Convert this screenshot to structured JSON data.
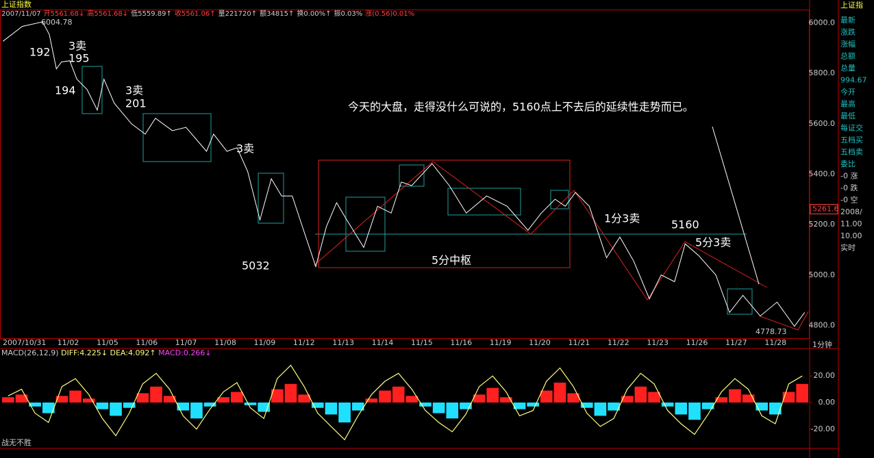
{
  "chart_data": {
    "type": "line",
    "title": "上证指数",
    "info": [
      {
        "text": "2007/11/07",
        "color": "#ccc"
      },
      {
        "text": "开5561.68↓",
        "color": "#ff4040"
      },
      {
        "text": "高5561.68↓",
        "color": "#ff4040"
      },
      {
        "text": "低5559.89↑",
        "color": "#ccc"
      },
      {
        "text": "收5561.06↑",
        "color": "#ff4040"
      },
      {
        "text": "量221720↑",
        "color": "#ccc"
      },
      {
        "text": "额34815↑",
        "color": "#ccc"
      },
      {
        "text": "换0.00%↑",
        "color": "#ccc"
      },
      {
        "text": "振0.03%",
        "color": "#ccc"
      },
      {
        "text": "涨(0.56)0.01%",
        "color": "#ff4040"
      }
    ],
    "categories": [
      "2007/10/31",
      "11/02",
      "11/05",
      "11/06",
      "11/07",
      "11/08",
      "11/09",
      "11/12",
      "11/13",
      "11/14",
      "11/15",
      "11/16",
      "11/19",
      "11/20",
      "11/21",
      "11/22",
      "11/23",
      "11/26",
      "11/27",
      "11/28"
    ],
    "x_unit_label": "1分钟",
    "xlim": [
      -0.7,
      19.85
    ],
    "ylim": [
      4750,
      6050
    ],
    "yticks": [
      {
        "value": 4800,
        "label": "4800.0"
      },
      {
        "value": 5000,
        "label": "5000.0"
      },
      {
        "value": 5200,
        "label": "5200.0"
      },
      {
        "value": 5400,
        "label": "5400.0"
      },
      {
        "value": 5600,
        "label": "5600.0"
      },
      {
        "value": 5800,
        "label": "5800.0"
      },
      {
        "value": 6000,
        "label": "6000.0"
      }
    ],
    "series": [
      {
        "name": "上证指数",
        "color": "#ffffff",
        "x": [
          -0.66,
          -0.17,
          0.35,
          0.52,
          0.7,
          0.83,
          1.04,
          1.22,
          1.48,
          1.74,
          1.91,
          2.17,
          2.61,
          2.96,
          3.22,
          3.65,
          4.0,
          4.52,
          4.7,
          5.04,
          5.3,
          5.57,
          5.88,
          6.17,
          6.43,
          6.7,
          6.96,
          7.3,
          7.57,
          7.83,
          8.09,
          8.52,
          8.87,
          9.22,
          9.48,
          9.74,
          10.26,
          10.7,
          11.13,
          11.65,
          12.17,
          12.7,
          13.04,
          13.39,
          13.65,
          13.91,
          14.26,
          14.7,
          15.04,
          15.39,
          15.79,
          16.09,
          16.43,
          16.7,
          17.04,
          17.48,
          17.83,
          18.17,
          18.61,
          19.04,
          19.48,
          19.74
        ],
        "values": [
          5927,
          5986,
          6004,
          5954,
          5818,
          5845,
          5850,
          5777,
          5736,
          5654,
          5777,
          5682,
          5600,
          5559,
          5622,
          5573,
          5586,
          5491,
          5559,
          5491,
          5505,
          5410,
          5219,
          5382,
          5314,
          5314,
          5192,
          5034,
          5192,
          5287,
          5219,
          5110,
          5273,
          5246,
          5369,
          5355,
          5442,
          5355,
          5246,
          5314,
          5273,
          5178,
          5246,
          5301,
          5273,
          5328,
          5273,
          5069,
          5151,
          5056,
          4906,
          5001,
          4974,
          5124,
          5078,
          5001,
          4852,
          4920,
          4838,
          4893,
          4797,
          4852
        ]
      }
    ],
    "current_price": {
      "value": 5261.6,
      "label": "5261.6"
    },
    "high_label": "6004.78",
    "low_label": "4778.73",
    "annotations": [
      "192",
      "3卖",
      "195",
      "194",
      "3卖",
      "201",
      "3卖",
      "5032",
      "5分中枢",
      "1分3卖",
      "5160",
      "5分3卖",
      "今天的大盘，走得没什么可说的，5160点上不去后的延续性走势而已。"
    ],
    "macd": {
      "title": "MACD(26,12,9)",
      "diff_label": "DIFF:4.225↓",
      "dea_label": "DEA:4.092↑",
      "macd_label": "MACD:0.266↓",
      "ylim": [
        -33,
        34
      ],
      "yticks": [
        {
          "value": -20,
          "label": "-20.00"
        },
        {
          "value": 0,
          "label": "0.00"
        },
        {
          "value": 20,
          "label": "20.00"
        }
      ],
      "up_color": "#ff2020",
      "down_color": "#20e0ff",
      "diff_color": "#ffff80",
      "values": [
        4,
        6,
        -3,
        -8,
        5,
        9,
        3,
        -5,
        -10,
        -4,
        7,
        12,
        5,
        -6,
        -12,
        -3,
        4,
        8,
        -2,
        -7,
        10,
        14,
        6,
        -4,
        -9,
        -15,
        -6,
        3,
        9,
        12,
        5,
        -3,
        -8,
        -12,
        -5,
        6,
        11,
        4,
        -5,
        -3,
        9,
        15,
        7,
        -4,
        -10,
        -6,
        5,
        12,
        8,
        -3,
        -9,
        -13,
        -5,
        4,
        10,
        6,
        -6,
        -9,
        8,
        14
      ],
      "diff": [
        5,
        10,
        -8,
        -15,
        12,
        18,
        6,
        -12,
        -25,
        -8,
        14,
        22,
        10,
        -10,
        -20,
        -5,
        8,
        15,
        -4,
        -12,
        18,
        28,
        12,
        -8,
        -18,
        -28,
        -10,
        6,
        16,
        22,
        10,
        -6,
        -15,
        -22,
        -9,
        12,
        20,
        8,
        -10,
        -6,
        16,
        26,
        12,
        -8,
        -18,
        -12,
        10,
        22,
        14,
        -6,
        -16,
        -24,
        -9,
        8,
        18,
        10,
        -10,
        -16,
        14,
        20
      ]
    },
    "footer": "战无不胜",
    "side_panel": {
      "title": "上证指",
      "items": [
        "最新",
        "涨跌",
        "涨幅",
        "总额",
        "总量",
        "994.67",
        "今开",
        "最高",
        "最低",
        "每证交",
        "五档买",
        "五档卖",
        "委比",
        "-0 涨",
        "-0 跌",
        "-0 空",
        "2008/",
        "11.00",
        "10.00",
        "实时"
      ]
    }
  }
}
